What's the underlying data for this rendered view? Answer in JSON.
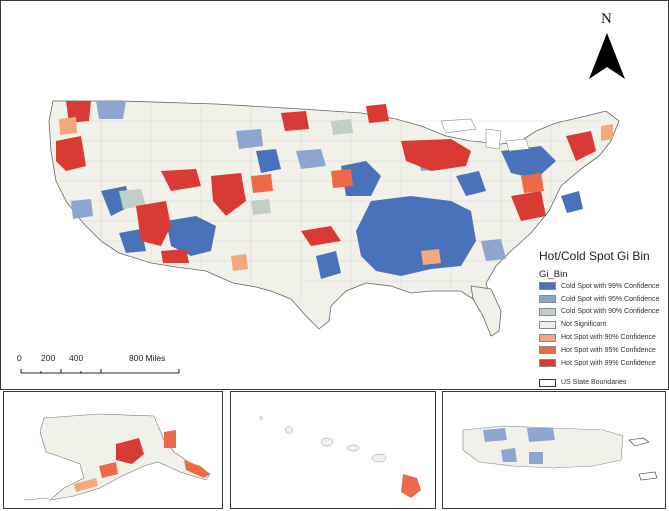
{
  "map": {
    "north_letter": "N",
    "legend": {
      "title": "Hot/Cold Spot Gi Bin",
      "subtitle": "Gi_Bin",
      "items": [
        {
          "label": "Cold Spot with 99% Confidence",
          "color": "#4a72bb"
        },
        {
          "label": "Cold Spot with 95% Confidence",
          "color": "#8ea6cf"
        },
        {
          "label": "Cold Spot with 90% Confidence",
          "color": "#c3cfc6"
        },
        {
          "label": "Not Significant",
          "color": "#f1f1ea"
        },
        {
          "label": "Hot Spot with 90% Confidence",
          "color": "#f3a87e"
        },
        {
          "label": "Hot Spot with 95% Confidence",
          "color": "#ec6a48"
        },
        {
          "label": "Hot Spot with 99% Confidence",
          "color": "#d93a33"
        }
      ],
      "boundary_label": "US State Boundaries"
    },
    "scale": {
      "labels": [
        "0",
        "200",
        "400",
        "800 Miles"
      ]
    }
  }
}
